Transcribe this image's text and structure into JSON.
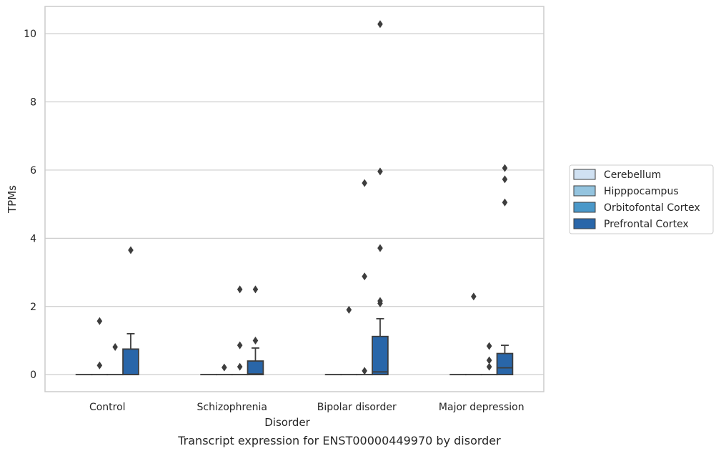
{
  "caption": "Transcript expression for ENST00000449970 by disorder",
  "chart_data": {
    "type": "box",
    "title": "",
    "xlabel": "Disorder",
    "ylabel": "TPMs",
    "ylim": [
      -0.5,
      10.8
    ],
    "yticks": [
      0,
      2,
      4,
      6,
      8,
      10
    ],
    "grid": "horizontal",
    "legend_position": "right",
    "categories": [
      "Control",
      "Schizophrenia",
      "Bipolar disorder",
      "Major depression"
    ],
    "series": [
      {
        "name": "Cerebellum",
        "color": "#d0e1f2",
        "boxes": [
          {
            "q1": 0,
            "median": 0,
            "q3": 0,
            "whisker_low": 0,
            "whisker_high": 0,
            "outliers": []
          },
          {
            "q1": 0,
            "median": 0,
            "q3": 0,
            "whisker_low": 0,
            "whisker_high": 0,
            "outliers": []
          },
          {
            "q1": 0,
            "median": 0,
            "q3": 0,
            "whisker_low": 0,
            "whisker_high": 0,
            "outliers": []
          },
          {
            "q1": 0,
            "median": 0,
            "q3": 0,
            "whisker_low": 0,
            "whisker_high": 0,
            "outliers": []
          }
        ]
      },
      {
        "name": "Hipppocampus",
        "color": "#94c4df",
        "boxes": [
          {
            "q1": 0,
            "median": 0,
            "q3": 0,
            "whisker_low": 0,
            "whisker_high": 0,
            "outliers": [
              1.57,
              0.27
            ]
          },
          {
            "q1": 0,
            "median": 0,
            "q3": 0,
            "whisker_low": 0,
            "whisker_high": 0,
            "outliers": [
              0.21
            ]
          },
          {
            "q1": 0,
            "median": 0,
            "q3": 0,
            "whisker_low": 0,
            "whisker_high": 0,
            "outliers": [
              1.9
            ]
          },
          {
            "q1": 0,
            "median": 0,
            "q3": 0,
            "whisker_low": 0,
            "whisker_high": 0,
            "outliers": [
              2.29
            ]
          }
        ]
      },
      {
        "name": "Orbitofontal Cortex",
        "color": "#4a98c9",
        "boxes": [
          {
            "q1": 0,
            "median": 0,
            "q3": 0,
            "whisker_low": 0,
            "whisker_high": 0,
            "outliers": [
              0.81
            ]
          },
          {
            "q1": 0,
            "median": 0,
            "q3": 0,
            "whisker_low": 0,
            "whisker_high": 0,
            "outliers": [
              2.5,
              0.86,
              0.23
            ]
          },
          {
            "q1": 0,
            "median": 0,
            "q3": 0,
            "whisker_low": 0,
            "whisker_high": 0,
            "outliers": [
              5.62,
              2.88,
              0.11
            ]
          },
          {
            "q1": 0,
            "median": 0,
            "q3": 0,
            "whisker_low": 0,
            "whisker_high": 0,
            "outliers": [
              0.84,
              0.42,
              0.23
            ]
          }
        ]
      },
      {
        "name": "Prefrontal Cortex",
        "color": "#2966a9",
        "boxes": [
          {
            "q1": 0,
            "median": 0,
            "q3": 0.75,
            "whisker_low": 0,
            "whisker_high": 1.2,
            "outliers": [
              3.65
            ]
          },
          {
            "q1": 0,
            "median": 0.02,
            "q3": 0.4,
            "whisker_low": 0,
            "whisker_high": 0.78,
            "outliers": [
              2.5,
              1.0
            ]
          },
          {
            "q1": 0,
            "median": 0.08,
            "q3": 1.12,
            "whisker_low": 0,
            "whisker_high": 1.64,
            "outliers": [
              10.28,
              5.96,
              3.71,
              2.16,
              2.09
            ]
          },
          {
            "q1": 0,
            "median": 0.2,
            "q3": 0.62,
            "whisker_low": 0,
            "whisker_high": 0.86,
            "outliers": [
              6.06,
              5.73,
              5.05
            ]
          }
        ]
      }
    ]
  }
}
